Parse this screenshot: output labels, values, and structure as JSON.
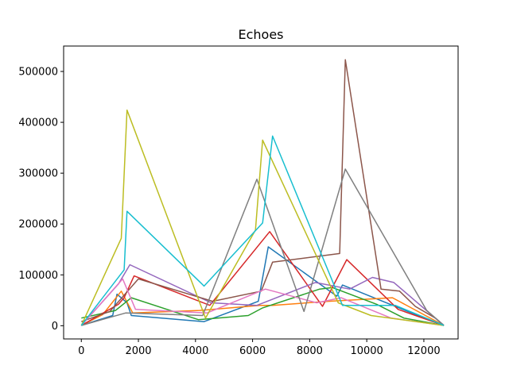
{
  "chart_data": {
    "type": "line",
    "title": "Echoes",
    "xlabel": "",
    "ylabel": "",
    "xlim": [
      -620,
      13200
    ],
    "ylim": [
      -26000,
      550000
    ],
    "x_ticks": [
      0,
      2000,
      4000,
      6000,
      8000,
      10000,
      12000
    ],
    "x_tick_labels": [
      "0",
      "2000",
      "4000",
      "6000",
      "8000",
      "10000",
      "12000"
    ],
    "y_ticks": [
      0,
      100000,
      200000,
      300000,
      400000,
      500000
    ],
    "y_tick_labels": [
      "0",
      "100000",
      "200000",
      "300000",
      "400000",
      "500000"
    ],
    "grid": false,
    "legend": "none",
    "colors": [
      "#1f77b4",
      "#ff7f0e",
      "#2ca02c",
      "#d62728",
      "#9467bd",
      "#8c564b",
      "#e377c2",
      "#7f7f7f",
      "#bcbd22",
      "#17becf"
    ],
    "series": [
      {
        "color": "#1f77b4",
        "points": [
          [
            0,
            500
          ],
          [
            1100,
            20000
          ],
          [
            1250,
            62000
          ],
          [
            1600,
            45000
          ],
          [
            1750,
            20000
          ],
          [
            4300,
            8000
          ],
          [
            6200,
            48000
          ],
          [
            6550,
            155000
          ],
          [
            8950,
            58000
          ],
          [
            9150,
            80000
          ],
          [
            11350,
            30000
          ],
          [
            12700,
            500
          ]
        ]
      },
      {
        "color": "#ff7f0e",
        "points": [
          [
            0,
            500
          ],
          [
            750,
            22000
          ],
          [
            1400,
            68000
          ],
          [
            1800,
            25000
          ],
          [
            4150,
            30000
          ],
          [
            6250,
            40000
          ],
          [
            6700,
            40000
          ],
          [
            8650,
            48000
          ],
          [
            10900,
            55000
          ],
          [
            12700,
            500
          ]
        ]
      },
      {
        "color": "#2ca02c",
        "points": [
          [
            0,
            15000
          ],
          [
            1200,
            30000
          ],
          [
            1750,
            55000
          ],
          [
            4100,
            12000
          ],
          [
            5850,
            20000
          ],
          [
            6350,
            35000
          ],
          [
            8350,
            72000
          ],
          [
            8800,
            75000
          ],
          [
            10350,
            42000
          ],
          [
            11300,
            15000
          ],
          [
            12700,
            500
          ]
        ]
      },
      {
        "color": "#d62728",
        "points": [
          [
            0,
            500
          ],
          [
            1300,
            42000
          ],
          [
            1500,
            55000
          ],
          [
            1850,
            98000
          ],
          [
            4500,
            40000
          ],
          [
            6600,
            185000
          ],
          [
            8450,
            38000
          ],
          [
            9300,
            130000
          ],
          [
            11100,
            32000
          ],
          [
            12700,
            500
          ]
        ]
      },
      {
        "color": "#9467bd",
        "points": [
          [
            0,
            500
          ],
          [
            1300,
            82000
          ],
          [
            1700,
            120000
          ],
          [
            4550,
            45000
          ],
          [
            6150,
            40000
          ],
          [
            8200,
            85000
          ],
          [
            9400,
            72000
          ],
          [
            10200,
            95000
          ],
          [
            10950,
            85000
          ],
          [
            12700,
            500
          ]
        ]
      },
      {
        "color": "#8c564b",
        "points": [
          [
            0,
            8000
          ],
          [
            1000,
            28000
          ],
          [
            2000,
            92000
          ],
          [
            4600,
            48000
          ],
          [
            6300,
            68000
          ],
          [
            6700,
            125000
          ],
          [
            9050,
            142000
          ],
          [
            9250,
            523000
          ],
          [
            10500,
            72000
          ],
          [
            11150,
            68000
          ],
          [
            11700,
            38000
          ],
          [
            12400,
            15000
          ],
          [
            12700,
            500
          ]
        ]
      },
      {
        "color": "#e377c2",
        "points": [
          [
            0,
            500
          ],
          [
            1450,
            92000
          ],
          [
            1900,
            32000
          ],
          [
            4400,
            25000
          ],
          [
            6450,
            72000
          ],
          [
            8250,
            45000
          ],
          [
            9100,
            55000
          ],
          [
            10850,
            15000
          ],
          [
            12700,
            500
          ]
        ]
      },
      {
        "color": "#7f7f7f",
        "points": [
          [
            0,
            500
          ],
          [
            1550,
            25000
          ],
          [
            4250,
            20000
          ],
          [
            6150,
            288000
          ],
          [
            7800,
            28000
          ],
          [
            9250,
            308000
          ],
          [
            12100,
            30000
          ],
          [
            12700,
            500
          ]
        ]
      },
      {
        "color": "#bcbd22",
        "points": [
          [
            0,
            500
          ],
          [
            1400,
            172000
          ],
          [
            1600,
            424000
          ],
          [
            4350,
            15000
          ],
          [
            6100,
            188000
          ],
          [
            6350,
            365000
          ],
          [
            9000,
            45000
          ],
          [
            10150,
            20000
          ],
          [
            12700,
            500
          ]
        ]
      },
      {
        "color": "#17becf",
        "points": [
          [
            0,
            500
          ],
          [
            1500,
            110000
          ],
          [
            1600,
            225000
          ],
          [
            4300,
            78000
          ],
          [
            6350,
            202000
          ],
          [
            6700,
            373000
          ],
          [
            9150,
            40000
          ],
          [
            11000,
            40000
          ],
          [
            12700,
            500
          ]
        ]
      }
    ]
  }
}
